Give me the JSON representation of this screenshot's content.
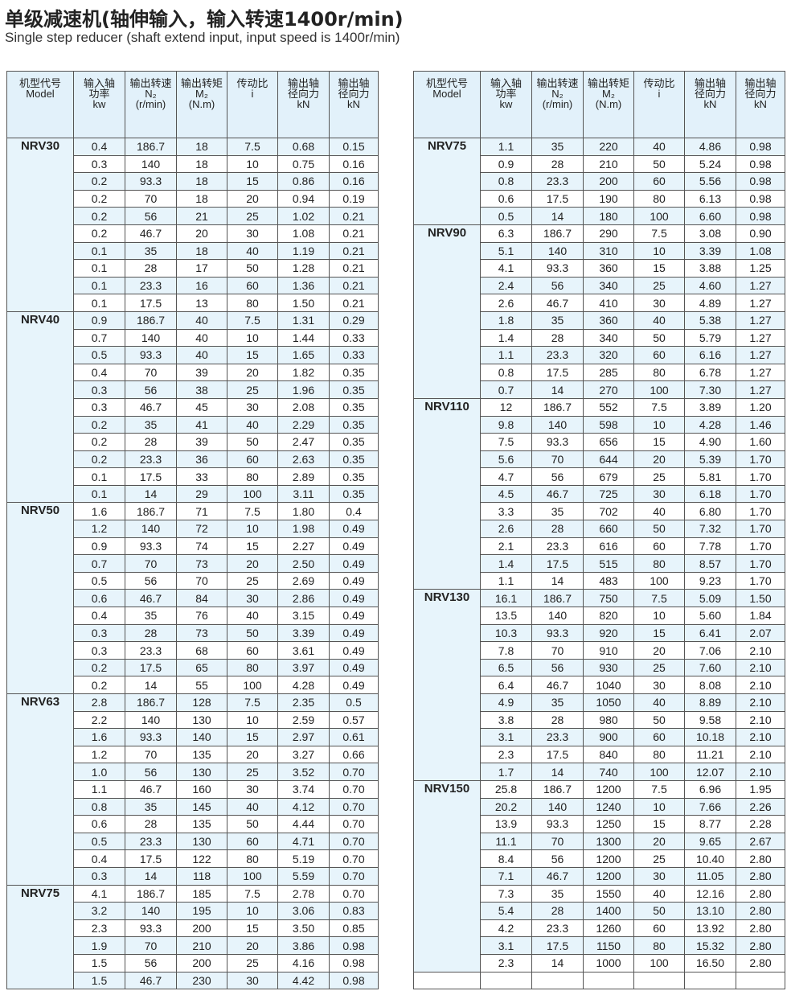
{
  "title": "单级减速机(轴伸输入，输入转速1400r/min)",
  "subtitle": "Single step reducer (shaft extend input,  input speed is 1400r/min)",
  "tables": [
    {
      "headers": [
        [
          "机型代号",
          "Model"
        ],
        [
          "输入轴",
          "功率",
          "kw"
        ],
        [
          "输出转速",
          "N₂",
          "(r/min)"
        ],
        [
          "输出转矩",
          "M₂",
          "(N.m)"
        ],
        [
          "传动比",
          "i"
        ],
        [
          "输出轴",
          "径向力",
          "kN"
        ],
        [
          "输出轴",
          "径向力",
          "kN"
        ]
      ],
      "groups": [
        {
          "model": "NRV30",
          "rows": [
            [
              "0.4",
              "186.7",
              "18",
              "7.5",
              "0.68",
              "0.15"
            ],
            [
              "0.3",
              "140",
              "18",
              "10",
              "0.75",
              "0.16"
            ],
            [
              "0.2",
              "93.3",
              "18",
              "15",
              "0.86",
              "0.16"
            ],
            [
              "0.2",
              "70",
              "18",
              "20",
              "0.94",
              "0.19"
            ],
            [
              "0.2",
              "56",
              "21",
              "25",
              "1.02",
              "0.21"
            ],
            [
              "0.2",
              "46.7",
              "20",
              "30",
              "1.08",
              "0.21"
            ],
            [
              "0.1",
              "35",
              "18",
              "40",
              "1.19",
              "0.21"
            ],
            [
              "0.1",
              "28",
              "17",
              "50",
              "1.28",
              "0.21"
            ],
            [
              "0.1",
              "23.3",
              "16",
              "60",
              "1.36",
              "0.21"
            ],
            [
              "0.1",
              "17.5",
              "13",
              "80",
              "1.50",
              "0.21"
            ]
          ]
        },
        {
          "model": "NRV40",
          "rows": [
            [
              "0.9",
              "186.7",
              "40",
              "7.5",
              "1.31",
              "0.29"
            ],
            [
              "0.7",
              "140",
              "40",
              "10",
              "1.44",
              "0.33"
            ],
            [
              "0.5",
              "93.3",
              "40",
              "15",
              "1.65",
              "0.33"
            ],
            [
              "0.4",
              "70",
              "39",
              "20",
              "1.82",
              "0.35"
            ],
            [
              "0.3",
              "56",
              "38",
              "25",
              "1.96",
              "0.35"
            ],
            [
              "0.3",
              "46.7",
              "45",
              "30",
              "2.08",
              "0.35"
            ],
            [
              "0.2",
              "35",
              "41",
              "40",
              "2.29",
              "0.35"
            ],
            [
              "0.2",
              "28",
              "39",
              "50",
              "2.47",
              "0.35"
            ],
            [
              "0.2",
              "23.3",
              "36",
              "60",
              "2.63",
              "0.35"
            ],
            [
              "0.1",
              "17.5",
              "33",
              "80",
              "2.89",
              "0.35"
            ],
            [
              "0.1",
              "14",
              "29",
              "100",
              "3.11",
              "0.35"
            ]
          ]
        },
        {
          "model": "NRV50",
          "rows": [
            [
              "1.6",
              "186.7",
              "71",
              "7.5",
              "1.80",
              "0.4"
            ],
            [
              "1.2",
              "140",
              "72",
              "10",
              "1.98",
              "0.49"
            ],
            [
              "0.9",
              "93.3",
              "74",
              "15",
              "2.27",
              "0.49"
            ],
            [
              "0.7",
              "70",
              "73",
              "20",
              "2.50",
              "0.49"
            ],
            [
              "0.5",
              "56",
              "70",
              "25",
              "2.69",
              "0.49"
            ],
            [
              "0.6",
              "46.7",
              "84",
              "30",
              "2.86",
              "0.49"
            ],
            [
              "0.4",
              "35",
              "76",
              "40",
              "3.15",
              "0.49"
            ],
            [
              "0.3",
              "28",
              "73",
              "50",
              "3.39",
              "0.49"
            ],
            [
              "0.3",
              "23.3",
              "68",
              "60",
              "3.61",
              "0.49"
            ],
            [
              "0.2",
              "17.5",
              "65",
              "80",
              "3.97",
              "0.49"
            ],
            [
              "0.2",
              "14",
              "55",
              "100",
              "4.28",
              "0.49"
            ]
          ]
        },
        {
          "model": "NRV63",
          "rows": [
            [
              "2.8",
              "186.7",
              "128",
              "7.5",
              "2.35",
              "0.5"
            ],
            [
              "2.2",
              "140",
              "130",
              "10",
              "2.59",
              "0.57"
            ],
            [
              "1.6",
              "93.3",
              "140",
              "15",
              "2.97",
              "0.61"
            ],
            [
              "1.2",
              "70",
              "135",
              "20",
              "3.27",
              "0.66"
            ],
            [
              "1.0",
              "56",
              "130",
              "25",
              "3.52",
              "0.70"
            ],
            [
              "1.1",
              "46.7",
              "160",
              "30",
              "3.74",
              "0.70"
            ],
            [
              "0.8",
              "35",
              "145",
              "40",
              "4.12",
              "0.70"
            ],
            [
              "0.6",
              "28",
              "135",
              "50",
              "4.44",
              "0.70"
            ],
            [
              "0.5",
              "23.3",
              "130",
              "60",
              "4.71",
              "0.70"
            ],
            [
              "0.4",
              "17.5",
              "122",
              "80",
              "5.19",
              "0.70"
            ],
            [
              "0.3",
              "14",
              "118",
              "100",
              "5.59",
              "0.70"
            ]
          ]
        },
        {
          "model": "NRV75",
          "rows": [
            [
              "4.1",
              "186.7",
              "185",
              "7.5",
              "2.78",
              "0.70"
            ],
            [
              "3.2",
              "140",
              "195",
              "10",
              "3.06",
              "0.83"
            ],
            [
              "2.3",
              "93.3",
              "200",
              "15",
              "3.50",
              "0.85"
            ],
            [
              "1.9",
              "70",
              "210",
              "20",
              "3.86",
              "0.98"
            ],
            [
              "1.5",
              "56",
              "200",
              "25",
              "4.16",
              "0.98"
            ],
            [
              "1.5",
              "46.7",
              "230",
              "30",
              "4.42",
              "0.98"
            ]
          ]
        }
      ]
    },
    {
      "headers": [
        [
          "机型代号",
          "Model"
        ],
        [
          "输入轴",
          "功率",
          "kw"
        ],
        [
          "输出转速",
          "N₂",
          "(r/min)"
        ],
        [
          "输出转矩",
          "M₂",
          "(N.m)"
        ],
        [
          "传动比",
          "i"
        ],
        [
          "输出轴",
          "径向力",
          "kN"
        ],
        [
          "输出轴",
          "径向力",
          "kN"
        ]
      ],
      "groups": [
        {
          "model": "NRV75",
          "rows": [
            [
              "1.1",
              "35",
              "220",
              "40",
              "4.86",
              "0.98"
            ],
            [
              "0.9",
              "28",
              "210",
              "50",
              "5.24",
              "0.98"
            ],
            [
              "0.8",
              "23.3",
              "200",
              "60",
              "5.56",
              "0.98"
            ],
            [
              "0.6",
              "17.5",
              "190",
              "80",
              "6.13",
              "0.98"
            ],
            [
              "0.5",
              "14",
              "180",
              "100",
              "6.60",
              "0.98"
            ]
          ]
        },
        {
          "model": "NRV90",
          "rows": [
            [
              "6.3",
              "186.7",
              "290",
              "7.5",
              "3.08",
              "0.90"
            ],
            [
              "5.1",
              "140",
              "310",
              "10",
              "3.39",
              "1.08"
            ],
            [
              "4.1",
              "93.3",
              "360",
              "15",
              "3.88",
              "1.25"
            ],
            [
              "2.4",
              "56",
              "340",
              "25",
              "4.60",
              "1.27"
            ],
            [
              "2.6",
              "46.7",
              "410",
              "30",
              "4.89",
              "1.27"
            ],
            [
              "1.8",
              "35",
              "360",
              "40",
              "5.38",
              "1.27"
            ],
            [
              "1.4",
              "28",
              "340",
              "50",
              "5.79",
              "1.27"
            ],
            [
              "1.1",
              "23.3",
              "320",
              "60",
              "6.16",
              "1.27"
            ],
            [
              "0.8",
              "17.5",
              "285",
              "80",
              "6.78",
              "1.27"
            ],
            [
              "0.7",
              "14",
              "270",
              "100",
              "7.30",
              "1.27"
            ]
          ]
        },
        {
          "model": "NRV110",
          "rows": [
            [
              "12",
              "186.7",
              "552",
              "7.5",
              "3.89",
              "1.20"
            ],
            [
              "9.8",
              "140",
              "598",
              "10",
              "4.28",
              "1.46"
            ],
            [
              "7.5",
              "93.3",
              "656",
              "15",
              "4.90",
              "1.60"
            ],
            [
              "5.6",
              "70",
              "644",
              "20",
              "5.39",
              "1.70"
            ],
            [
              "4.7",
              "56",
              "679",
              "25",
              "5.81",
              "1.70"
            ],
            [
              "4.5",
              "46.7",
              "725",
              "30",
              "6.18",
              "1.70"
            ],
            [
              "3.3",
              "35",
              "702",
              "40",
              "6.80",
              "1.70"
            ],
            [
              "2.6",
              "28",
              "660",
              "50",
              "7.32",
              "1.70"
            ],
            [
              "2.1",
              "23.3",
              "616",
              "60",
              "7.78",
              "1.70"
            ],
            [
              "1.4",
              "17.5",
              "515",
              "80",
              "8.57",
              "1.70"
            ],
            [
              "1.1",
              "14",
              "483",
              "100",
              "9.23",
              "1.70"
            ]
          ]
        },
        {
          "model": "NRV130",
          "rows": [
            [
              "16.1",
              "186.7",
              "750",
              "7.5",
              "5.09",
              "1.50"
            ],
            [
              "13.5",
              "140",
              "820",
              "10",
              "5.60",
              "1.84"
            ],
            [
              "10.3",
              "93.3",
              "920",
              "15",
              "6.41",
              "2.07"
            ],
            [
              "7.8",
              "70",
              "910",
              "20",
              "7.06",
              "2.10"
            ],
            [
              "6.5",
              "56",
              "930",
              "25",
              "7.60",
              "2.10"
            ],
            [
              "6.4",
              "46.7",
              "1040",
              "30",
              "8.08",
              "2.10"
            ],
            [
              "4.9",
              "35",
              "1050",
              "40",
              "8.89",
              "2.10"
            ],
            [
              "3.8",
              "28",
              "980",
              "50",
              "9.58",
              "2.10"
            ],
            [
              "3.1",
              "23.3",
              "900",
              "60",
              "10.18",
              "2.10"
            ],
            [
              "2.3",
              "17.5",
              "840",
              "80",
              "11.21",
              "2.10"
            ],
            [
              "1.7",
              "14",
              "740",
              "100",
              "12.07",
              "2.10"
            ]
          ]
        },
        {
          "model": "NRV150",
          "rows": [
            [
              "25.8",
              "186.7",
              "1200",
              "7.5",
              "6.96",
              "1.95"
            ],
            [
              "20.2",
              "140",
              "1240",
              "10",
              "7.66",
              "2.26"
            ],
            [
              "13.9",
              "93.3",
              "1250",
              "15",
              "8.77",
              "2.28"
            ],
            [
              "11.1",
              "70",
              "1300",
              "20",
              "9.65",
              "2.67"
            ],
            [
              "8.4",
              "56",
              "1200",
              "25",
              "10.40",
              "2.80"
            ],
            [
              "7.1",
              "46.7",
              "1200",
              "30",
              "11.05",
              "2.80"
            ],
            [
              "7.3",
              "35",
              "1550",
              "40",
              "12.16",
              "2.80"
            ],
            [
              "5.4",
              "28",
              "1400",
              "50",
              "13.10",
              "2.80"
            ],
            [
              "4.2",
              "23.3",
              "1260",
              "60",
              "13.92",
              "2.80"
            ],
            [
              "3.1",
              "17.5",
              "1150",
              "80",
              "15.32",
              "2.80"
            ],
            [
              "2.3",
              "14",
              "1000",
              "100",
              "16.50",
              "2.80"
            ]
          ]
        }
      ]
    }
  ]
}
